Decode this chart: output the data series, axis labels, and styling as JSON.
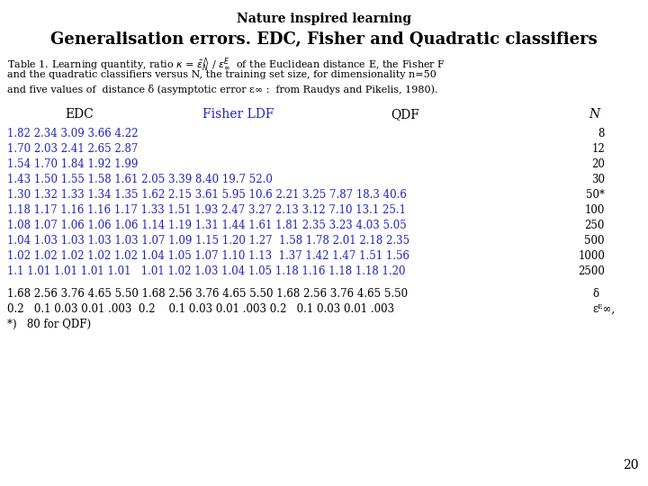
{
  "title": "Nature inspired learning",
  "subtitle": "Generalisation errors. EDC, Fisher and Quadratic classifiers",
  "col_headers": [
    "EDC",
    "Fisher LDF",
    "QDF",
    "N"
  ],
  "col_header_colors": [
    "black",
    "#2222bb",
    "black",
    "black"
  ],
  "table_color": "#2222bb",
  "row_data": [
    "1.82 2.34 3.09 3.66 4.22",
    "1.70 2.03 2.41 2.65 2.87",
    "1.54 1.70 1.84 1.92 1.99",
    "1.43 1.50 1.55 1.58 1.61 2.05 3.39 8.40 19.7 52.0",
    "1.30 1.32 1.33 1.34 1.35 1.62 2.15 3.61 5.95 10.6 2.21 3.25 7.87 18.3 40.6",
    "1.18 1.17 1.16 1.16 1.17 1.33 1.51 1.93 2.47 3.27 2.13 3.12 7.10 13.1 25.1",
    "1.08 1.07 1.06 1.06 1.06 1.14 1.19 1.31 1.44 1.61 1.81 2.35 3.23 4.03 5.05",
    "1.04 1.03 1.03 1.03 1.03 1.07 1.09 1.15 1.20 1.27  1.58 1.78 2.01 2.18 2.35",
    "1.02 1.02 1.02 1.02 1.02 1.04 1.05 1.07 1.10 1.13  1.37 1.42 1.47 1.51 1.56",
    "1.1 1.01 1.01 1.01 1.01   1.01 1.02 1.03 1.04 1.05 1.18 1.16 1.18 1.18 1.20"
  ],
  "n_labels": [
    "8",
    "12",
    "20",
    "30",
    "50*",
    "100",
    "250",
    "500",
    "1000",
    "2500"
  ],
  "footer_data": [
    "1.68 2.56 3.76 4.65 5.50 1.68 2.56 3.76 4.65 5.50 1.68 2.56 3.76 4.65 5.50",
    "0.2   0.1 0.03 0.01 .003  0.2    0.1 0.03 0.01 .003 0.2   0.1 0.03 0.01 .003",
    "*)   80 for QDF)"
  ],
  "footer_labels": [
    "δ",
    "εᴱ∞,",
    ""
  ],
  "number_20": "20",
  "bg_color": "white"
}
